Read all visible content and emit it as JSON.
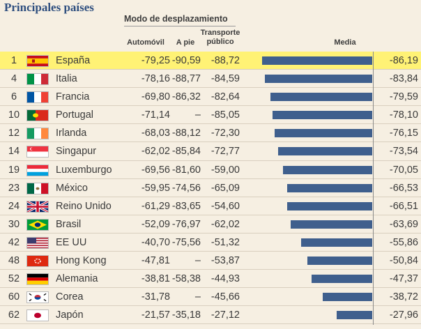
{
  "title": "Principales países",
  "header": {
    "group": "Modo de desplazamiento",
    "automovil": "Automóvil",
    "apie": "A pie",
    "transporte_l1": "Transporte",
    "transporte_l2": "público",
    "media": "Media"
  },
  "colors": {
    "bar": "#3f5f8d",
    "highlight": "#fff275",
    "title": "#2f4f7f",
    "background": "#f6efe2"
  },
  "chart_data": {
    "type": "table",
    "columns": [
      "Automóvil",
      "A pie",
      "Transporte público",
      "Media"
    ],
    "bar_column": "Media",
    "bar_range": [
      0,
      -86.19
    ],
    "rows": [
      {
        "rank": "1",
        "country": "España",
        "flag": "es",
        "automovil": "-79,25",
        "apie": "-90,59",
        "transporte": "-88,72",
        "media": "-86,19",
        "value": -86.19,
        "highlight": true
      },
      {
        "rank": "4",
        "country": "Italia",
        "flag": "it",
        "automovil": "-78,16",
        "apie": "-88,77",
        "transporte": "-84,59",
        "media": "-83,84",
        "value": -83.84
      },
      {
        "rank": "6",
        "country": "Francia",
        "flag": "fr",
        "automovil": "-69,80",
        "apie": "-86,32",
        "transporte": "-82,64",
        "media": "-79,59",
        "value": -79.59
      },
      {
        "rank": "10",
        "country": "Portugal",
        "flag": "pt",
        "automovil": "-71,14",
        "apie": "–",
        "transporte": "-85,05",
        "media": "-78,10",
        "value": -78.1
      },
      {
        "rank": "12",
        "country": "Irlanda",
        "flag": "ie",
        "automovil": "-68,03",
        "apie": "-88,12",
        "transporte": "-72,30",
        "media": "-76,15",
        "value": -76.15
      },
      {
        "rank": "14",
        "country": "Singapur",
        "flag": "sg",
        "automovil": "-62,02",
        "apie": "-85,84",
        "transporte": "-72,77",
        "media": "-73,54",
        "value": -73.54
      },
      {
        "rank": "19",
        "country": "Luxemburgo",
        "flag": "lu",
        "automovil": "-69,56",
        "apie": "-81,60",
        "transporte": "-59,00",
        "media": "-70,05",
        "value": -70.05
      },
      {
        "rank": "23",
        "country": "México",
        "flag": "mx",
        "automovil": "-59,95",
        "apie": "-74,56",
        "transporte": "-65,09",
        "media": "-66,53",
        "value": -66.53
      },
      {
        "rank": "24",
        "country": "Reino Unido",
        "flag": "gb",
        "automovil": "-61,29",
        "apie": "-83,65",
        "transporte": "-54,60",
        "media": "-66,51",
        "value": -66.51
      },
      {
        "rank": "30",
        "country": "Brasil",
        "flag": "br",
        "automovil": "-52,09",
        "apie": "-76,97",
        "transporte": "-62,02",
        "media": "-63,69",
        "value": -63.69
      },
      {
        "rank": "42",
        "country": "EE UU",
        "flag": "us",
        "automovil": "-40,70",
        "apie": "-75,56",
        "transporte": "-51,32",
        "media": "-55,86",
        "value": -55.86
      },
      {
        "rank": "48",
        "country": "Hong Kong",
        "flag": "hk",
        "automovil": "-47,81",
        "apie": "–",
        "transporte": "-53,87",
        "media": "-50,84",
        "value": -50.84
      },
      {
        "rank": "52",
        "country": "Alemania",
        "flag": "de",
        "automovil": "-38,81",
        "apie": "-58,38",
        "transporte": "-44,93",
        "media": "-47,37",
        "value": -47.37
      },
      {
        "rank": "60",
        "country": "Corea",
        "flag": "kr",
        "automovil": "-31,78",
        "apie": "–",
        "transporte": "-45,66",
        "media": "-38,72",
        "value": -38.72
      },
      {
        "rank": "62",
        "country": "Japón",
        "flag": "jp",
        "automovil": "-21,57",
        "apie": "-35,18",
        "transporte": "-27,12",
        "media": "-27,96",
        "value": -27.96
      }
    ]
  }
}
